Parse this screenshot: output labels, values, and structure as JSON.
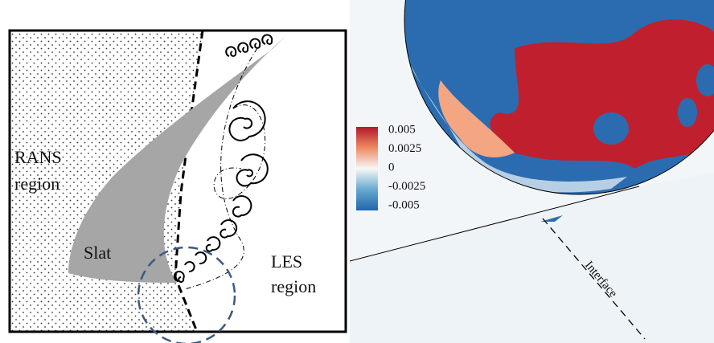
{
  "left_panel": {
    "rans_label": [
      "RANS",
      "region"
    ],
    "slat_label": "Slat",
    "les_label": [
      "LES",
      "region"
    ]
  },
  "right_panel": {
    "colorbar_labels": [
      "0.005",
      "0.0025",
      "0",
      "-0.0025",
      "-0.005"
    ],
    "interface_label": "Interface"
  }
}
